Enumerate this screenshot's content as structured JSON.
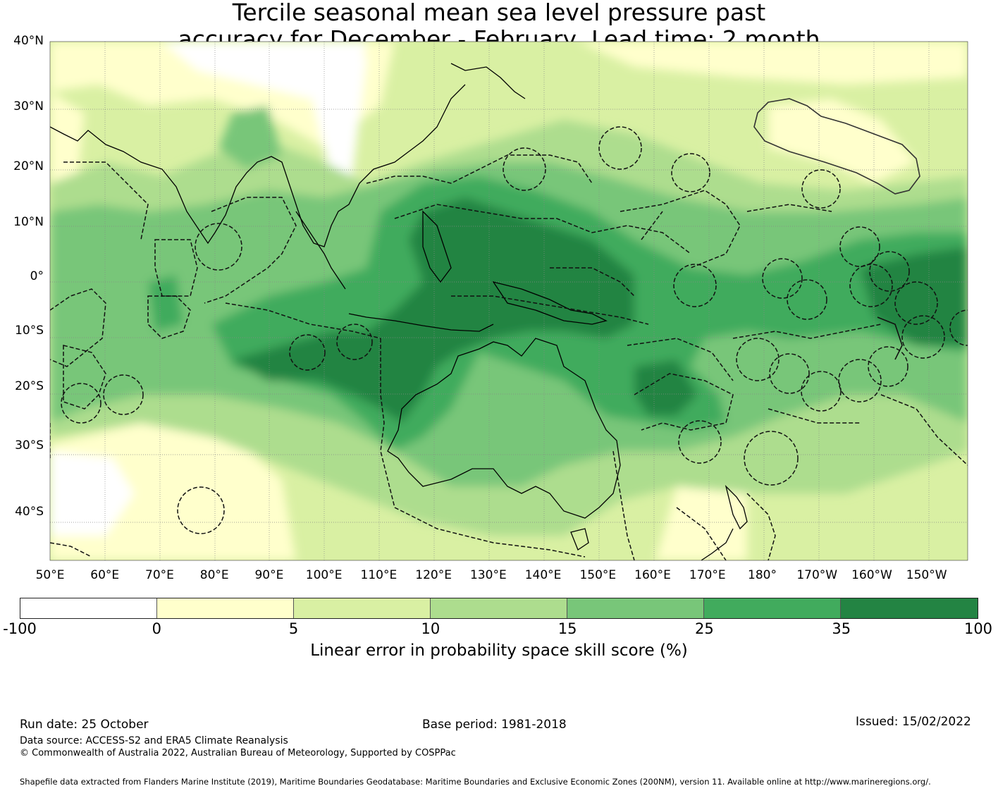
{
  "title": {
    "line1": "Tercile seasonal mean sea level pressure past",
    "line2": "accuracy for December - February, Lead time: 2 month"
  },
  "map": {
    "lat_labels": [
      "40°N",
      "30°N",
      "20°N",
      "10°N",
      "0°",
      "10°S",
      "20°S",
      "30°S",
      "40°S"
    ],
    "lat_values": [
      40,
      30,
      20,
      10,
      0,
      -10,
      -20,
      -30,
      -40
    ],
    "lon_labels": [
      "50°E",
      "60°E",
      "70°E",
      "80°E",
      "90°E",
      "100°E",
      "110°E",
      "120°E",
      "130°E",
      "140°E",
      "150°E",
      "160°E",
      "170°E",
      "180°",
      "170°W",
      "160°W",
      "150°W"
    ],
    "lon_values": [
      50,
      60,
      70,
      80,
      90,
      100,
      110,
      120,
      130,
      140,
      150,
      160,
      170,
      180,
      190,
      200,
      210
    ],
    "extent": {
      "lon_min": 50,
      "lon_max": 217.5,
      "lat_min": -46.5,
      "lat_max": 40
    }
  },
  "colorbar": {
    "ticks": [
      "-100",
      "0",
      "5",
      "10",
      "15",
      "25",
      "35",
      "100"
    ],
    "colors": [
      "#ffffff",
      "#ffffcc",
      "#d9f0a3",
      "#addd8e",
      "#78c679",
      "#41ab5d",
      "#238443"
    ],
    "label": "Linear error in probability space skill score (%)"
  },
  "footer": {
    "run_date": "Run date: 25 October",
    "base_period": "Base period: 1981-2018",
    "issued": "Issued: 15/02/2022",
    "data_source": "Data source: ACCESS-S2 and ERA5 Climate Reanalysis",
    "copyright": "© Commonwealth of Australia 2022, Australian Bureau of Meteorology, Supported by COSPPac",
    "shapefile": "Shapefile data extracted from Flanders Marine Institute (2019), Maritime Boundaries Geodatabase: Maritime Boundaries and Exclusive Economic Zones (200NM), version 11. Available online at http://www.marineregions.org/."
  }
}
